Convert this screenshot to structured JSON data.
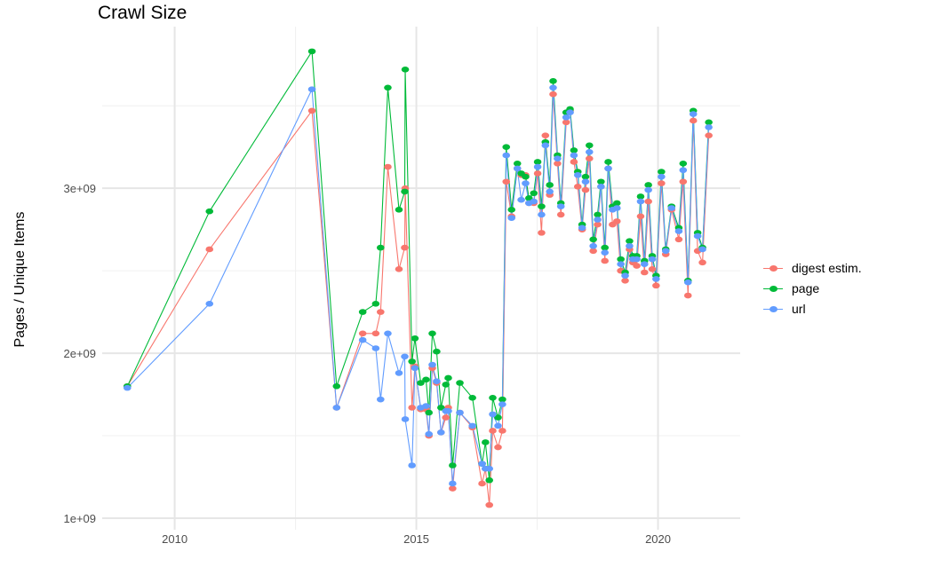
{
  "chart_data": {
    "type": "line",
    "title": "Crawl Size",
    "xlabel": "",
    "ylabel": "Pages / Unique Items",
    "xlim": [
      2008.5,
      2021.7
    ],
    "ylim": [
      930000000.0,
      3980000000.0
    ],
    "x_ticks": [
      2010,
      2015,
      2020
    ],
    "x_tick_labels": [
      "2010",
      "2015",
      "2020"
    ],
    "y_ticks": [
      1000000000.0,
      2000000000.0,
      3000000000.0
    ],
    "y_tick_labels": [
      "1e+09",
      "2e+09",
      "3e+09"
    ],
    "grid": true,
    "legend_position": "right",
    "markers": true,
    "x": [
      2009.02,
      2010.72,
      2012.84,
      2013.35,
      2013.89,
      2014.16,
      2014.26,
      2014.41,
      2014.64,
      2014.76,
      2014.77,
      2014.91,
      2014.97,
      2015.09,
      2015.2,
      2015.26,
      2015.33,
      2015.42,
      2015.51,
      2015.61,
      2015.66,
      2015.75,
      2015.9,
      2016.16,
      2016.36,
      2016.43,
      2016.51,
      2016.58,
      2016.69,
      2016.78,
      2016.86,
      2016.97,
      2017.09,
      2017.17,
      2017.26,
      2017.33,
      2017.43,
      2017.51,
      2017.59,
      2017.67,
      2017.76,
      2017.83,
      2017.92,
      2017.99,
      2018.1,
      2018.18,
      2018.26,
      2018.34,
      2018.43,
      2018.5,
      2018.58,
      2018.66,
      2018.75,
      2018.82,
      2018.9,
      2018.97,
      2019.06,
      2019.15,
      2019.23,
      2019.32,
      2019.41,
      2019.48,
      2019.56,
      2019.64,
      2019.72,
      2019.8,
      2019.88,
      2019.96,
      2020.07,
      2020.16,
      2020.28,
      2020.43,
      2020.52,
      2020.62,
      2020.73,
      2020.82,
      2020.92,
      2021.05
    ],
    "series": [
      {
        "name": "digest estim.",
        "color": "#F8766D",
        "values": [
          1800000000.0,
          2630000000.0,
          3470000000.0,
          1670000000.0,
          2120000000.0,
          2120000000.0,
          2250000000.0,
          3130000000.0,
          2510000000.0,
          2640000000.0,
          3000000000.0,
          1670000000.0,
          1920000000.0,
          1660000000.0,
          1660000000.0,
          1500000000.0,
          1910000000.0,
          1820000000.0,
          1520000000.0,
          1610000000.0,
          1670000000.0,
          1180000000.0,
          1640000000.0,
          1550000000.0,
          1210000000.0,
          1300000000.0,
          1080000000.0,
          1530000000.0,
          1430000000.0,
          1530000000.0,
          3040000000.0,
          2830000000.0,
          3120000000.0,
          3080000000.0,
          3080000000.0,
          2910000000.0,
          2910000000.0,
          3090000000.0,
          2730000000.0,
          3320000000.0,
          2960000000.0,
          3570000000.0,
          3150000000.0,
          2840000000.0,
          3400000000.0,
          3470000000.0,
          3160000000.0,
          3010000000.0,
          2750000000.0,
          2990000000.0,
          3180000000.0,
          2620000000.0,
          2780000000.0,
          3010000000.0,
          2560000000.0,
          3120000000.0,
          2780000000.0,
          2800000000.0,
          2500000000.0,
          2440000000.0,
          2630000000.0,
          2550000000.0,
          2530000000.0,
          2830000000.0,
          2490000000.0,
          2920000000.0,
          2510000000.0,
          2410000000.0,
          3030000000.0,
          2600000000.0,
          2870000000.0,
          2690000000.0,
          3040000000.0,
          2350000000.0,
          3410000000.0,
          2620000000.0,
          2550000000.0,
          3320000000.0
        ]
      },
      {
        "name": "page",
        "color": "#00BA38",
        "values": [
          1800000000.0,
          2860000000.0,
          3830000000.0,
          1800000000.0,
          2250000000.0,
          2300000000.0,
          2640000000.0,
          3610000000.0,
          2870000000.0,
          2980000000.0,
          3720000000.0,
          1950000000.0,
          2090000000.0,
          1820000000.0,
          1840000000.0,
          1640000000.0,
          2120000000.0,
          2010000000.0,
          1670000000.0,
          1810000000.0,
          1850000000.0,
          1320000000.0,
          1820000000.0,
          1730000000.0,
          1330000000.0,
          1460000000.0,
          1230000000.0,
          1730000000.0,
          1610000000.0,
          1720000000.0,
          3250000000.0,
          2870000000.0,
          3150000000.0,
          3090000000.0,
          3070000000.0,
          2940000000.0,
          2970000000.0,
          3160000000.0,
          2890000000.0,
          3280000000.0,
          3020000000.0,
          3650000000.0,
          3200000000.0,
          2910000000.0,
          3460000000.0,
          3480000000.0,
          3230000000.0,
          3100000000.0,
          2780000000.0,
          3070000000.0,
          3260000000.0,
          2690000000.0,
          2840000000.0,
          3040000000.0,
          2640000000.0,
          3160000000.0,
          2890000000.0,
          2910000000.0,
          2570000000.0,
          2490000000.0,
          2680000000.0,
          2590000000.0,
          2590000000.0,
          2950000000.0,
          2560000000.0,
          3020000000.0,
          2590000000.0,
          2470000000.0,
          3100000000.0,
          2630000000.0,
          2890000000.0,
          2760000000.0,
          3150000000.0,
          2440000000.0,
          3470000000.0,
          2730000000.0,
          2640000000.0,
          3400000000.0
        ]
      },
      {
        "name": "url",
        "color": "#619CFF",
        "values": [
          1790000000.0,
          2300000000.0,
          3600000000.0,
          1670000000.0,
          2080000000.0,
          2030000000.0,
          1720000000.0,
          2120000000.0,
          1880000000.0,
          1980000000.0,
          1600000000.0,
          1320000000.0,
          1910000000.0,
          1670000000.0,
          1680000000.0,
          1510000000.0,
          1930000000.0,
          1830000000.0,
          1520000000.0,
          1650000000.0,
          1650000000.0,
          1210000000.0,
          1640000000.0,
          1560000000.0,
          1330000000.0,
          1300000000.0,
          1300000000.0,
          1630000000.0,
          1560000000.0,
          1690000000.0,
          3200000000.0,
          2820000000.0,
          3120000000.0,
          2930000000.0,
          3030000000.0,
          2910000000.0,
          2920000000.0,
          3130000000.0,
          2840000000.0,
          3260000000.0,
          2980000000.0,
          3610000000.0,
          3180000000.0,
          2890000000.0,
          3430000000.0,
          3460000000.0,
          3200000000.0,
          3080000000.0,
          2760000000.0,
          3040000000.0,
          3220000000.0,
          2650000000.0,
          2810000000.0,
          3010000000.0,
          2610000000.0,
          3120000000.0,
          2870000000.0,
          2880000000.0,
          2540000000.0,
          2470000000.0,
          2650000000.0,
          2570000000.0,
          2570000000.0,
          2920000000.0,
          2540000000.0,
          2990000000.0,
          2570000000.0,
          2450000000.0,
          3070000000.0,
          2620000000.0,
          2880000000.0,
          2740000000.0,
          3110000000.0,
          2430000000.0,
          3450000000.0,
          2710000000.0,
          2630000000.0,
          3370000000.0
        ]
      }
    ]
  }
}
